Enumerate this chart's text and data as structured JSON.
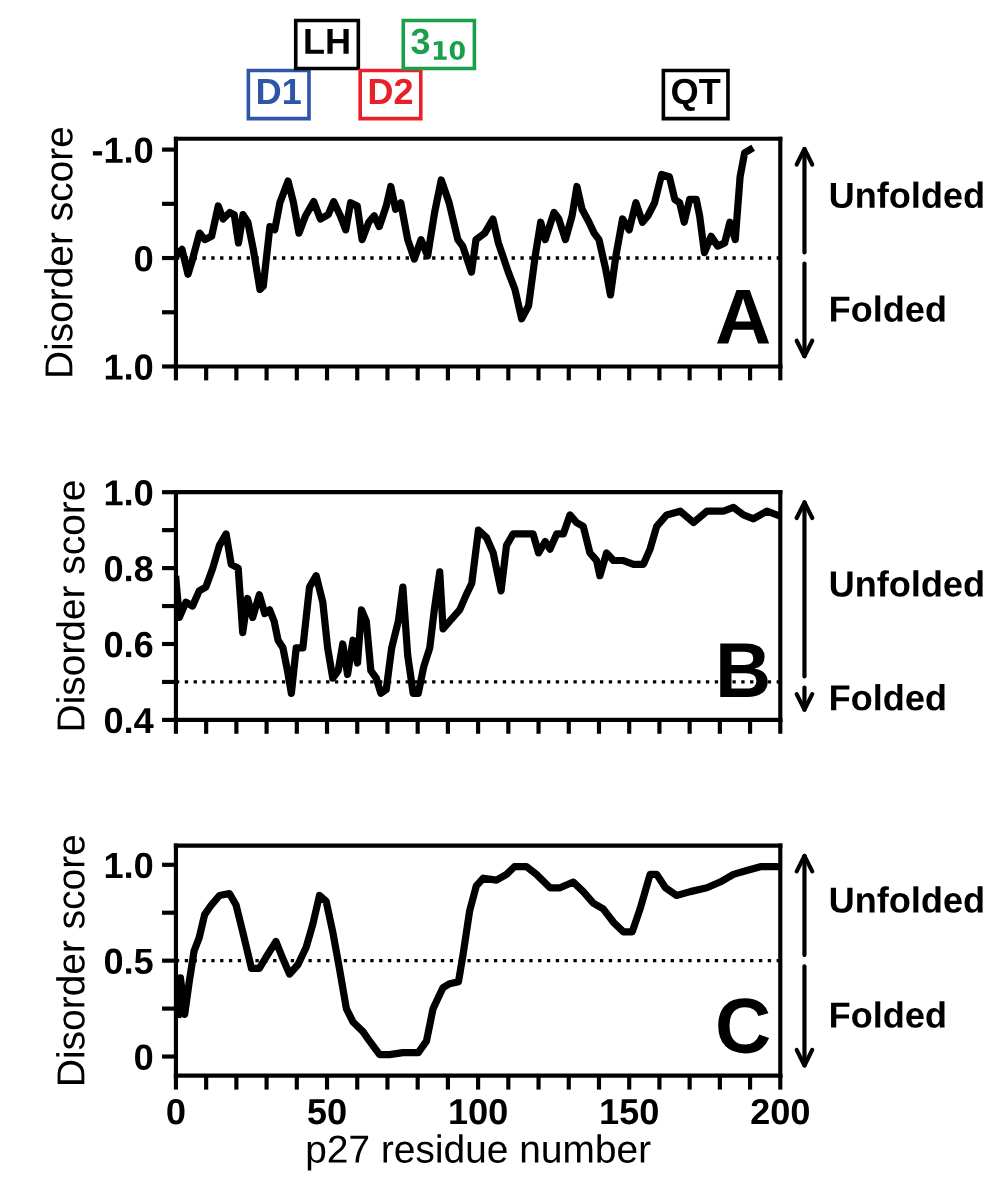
{
  "chart_data": [
    {
      "type": "line",
      "ylabel": "Disorder score",
      "xlim": [
        0,
        200
      ],
      "ylim": [
        1.0,
        -1.1
      ],
      "xticks": [
        0,
        {
          "value": 10,
          "label": null
        },
        {
          "value": 20,
          "label": null
        },
        {
          "value": 30,
          "label": null
        },
        {
          "value": 40,
          "label": null
        },
        50,
        {
          "value": 60,
          "label": null
        },
        {
          "value": 70,
          "label": null
        },
        {
          "value": 80,
          "label": null
        },
        {
          "value": 90,
          "label": null
        },
        100,
        {
          "value": 110,
          "label": null
        },
        {
          "value": 120,
          "label": null
        },
        {
          "value": 130,
          "label": null
        },
        {
          "value": 140,
          "label": null
        },
        150,
        {
          "value": 160,
          "label": null
        },
        {
          "value": 170,
          "label": null
        },
        {
          "value": 180,
          "label": null
        },
        {
          "value": 190,
          "label": null
        },
        200
      ],
      "yticks": [
        {
          "value": -1.0,
          "label": "-1.0"
        },
        {
          "value": -0.5,
          "label": null
        },
        0,
        {
          "value": 0.5,
          "label": null
        },
        {
          "value": 1.0,
          "label": "1.0"
        }
      ],
      "tick_labels": "y",
      "grid": false,
      "legend": false,
      "marker": "none",
      "line_style": "solid",
      "ref_lines": [
        {
          "axis": "y",
          "value": 0,
          "color": "#000000",
          "line_style": "dotted"
        }
      ],
      "annotations": [
        "Unfolded",
        "Folded",
        "A",
        "D1",
        "LH",
        "D2",
        "3$_{10}$",
        "QT"
      ],
      "series": [
        {
          "color": "#000000",
          "x": [
            1,
            2,
            4,
            5.5,
            7.8,
            9.5,
            11.8,
            14,
            15.6,
            17.8,
            19.3,
            20.7,
            22.2,
            23.8,
            25.6,
            27.8,
            28.9,
            31.1,
            32.7,
            34.4,
            37.1,
            38.9,
            40.7,
            42.9,
            45.6,
            47.8,
            50.4,
            52.2,
            54.4,
            56.2,
            57.8,
            60,
            61.6,
            63.8,
            65.6,
            67.3,
            69.6,
            71.1,
            72.7,
            74.4,
            76.7,
            78.9,
            81.1,
            83.3,
            85.6,
            87.8,
            90.4,
            93.3,
            94.9,
            97.8,
            99.3,
            102.2,
            104.9,
            106.7,
            110,
            112.2,
            114.4,
            116.7,
            118.9,
            120.7,
            122.2,
            125.1,
            126.7,
            128.9,
            131.1,
            132.7,
            134.4,
            136.7,
            138.4,
            140,
            142.2,
            143.8,
            145.6,
            147.8,
            150,
            152.2,
            154.4,
            156.2,
            158.4,
            160.7,
            163.3,
            165.1,
            166.7,
            168.2,
            170,
            172.2,
            173.3,
            174.9,
            177.1,
            179.3,
            181.6,
            183.3,
            185.1,
            186.7,
            188.2,
            190
          ],
          "values": [
            -0.05,
            -0.08,
            0.15,
            0.01,
            -0.23,
            -0.17,
            -0.2,
            -0.48,
            -0.36,
            -0.42,
            -0.4,
            -0.14,
            -0.4,
            -0.33,
            -0.08,
            0.29,
            0.26,
            -0.29,
            -0.26,
            -0.51,
            -0.71,
            -0.51,
            -0.23,
            -0.39,
            -0.52,
            -0.36,
            -0.4,
            -0.52,
            -0.39,
            -0.26,
            -0.51,
            -0.48,
            -0.17,
            -0.33,
            -0.39,
            -0.29,
            -0.48,
            -0.66,
            -0.45,
            -0.51,
            -0.17,
            0.01,
            -0.17,
            -0.02,
            -0.42,
            -0.72,
            -0.51,
            -0.17,
            -0.11,
            0.13,
            -0.17,
            -0.23,
            -0.36,
            -0.14,
            0.13,
            0.29,
            0.56,
            0.44,
            -0.02,
            -0.33,
            -0.17,
            -0.42,
            -0.36,
            -0.17,
            -0.39,
            -0.66,
            -0.45,
            -0.33,
            -0.23,
            -0.17,
            0.1,
            0.34,
            -0.02,
            -0.36,
            -0.26,
            -0.51,
            -0.33,
            -0.39,
            -0.51,
            -0.77,
            -0.75,
            -0.54,
            -0.51,
            -0.33,
            -0.54,
            -0.54,
            -0.39,
            -0.05,
            -0.2,
            -0.11,
            -0.14,
            -0.33,
            -0.17,
            -0.75,
            -0.97,
            -1.0
          ]
        }
      ]
    },
    {
      "type": "line",
      "ylabel": "Disorder score",
      "xlim": [
        0,
        200
      ],
      "ylim": [
        0.4,
        1.0
      ],
      "xticks": [
        0,
        {
          "value": 10,
          "label": null
        },
        {
          "value": 20,
          "label": null
        },
        {
          "value": 30,
          "label": null
        },
        {
          "value": 40,
          "label": null
        },
        50,
        {
          "value": 60,
          "label": null
        },
        {
          "value": 70,
          "label": null
        },
        {
          "value": 80,
          "label": null
        },
        {
          "value": 90,
          "label": null
        },
        100,
        {
          "value": 110,
          "label": null
        },
        {
          "value": 120,
          "label": null
        },
        {
          "value": 130,
          "label": null
        },
        {
          "value": 140,
          "label": null
        },
        150,
        {
          "value": 160,
          "label": null
        },
        {
          "value": 170,
          "label": null
        },
        {
          "value": 180,
          "label": null
        },
        {
          "value": 190,
          "label": null
        },
        200
      ],
      "yticks": [
        0.4,
        {
          "value": 0.5,
          "label": null
        },
        0.6,
        {
          "value": 0.7,
          "label": null
        },
        0.8,
        {
          "value": 0.9,
          "label": null
        },
        {
          "value": 1.0,
          "label": "1.0"
        }
      ],
      "tick_labels": "y",
      "grid": false,
      "legend": false,
      "marker": "none",
      "line_style": "solid",
      "ref_lines": [
        {
          "axis": "y",
          "value": 0.5,
          "color": "#000000",
          "line_style": "dotted"
        }
      ],
      "annotations": [
        "Unfolded",
        "Folded",
        "B"
      ],
      "series": [
        {
          "color": "#000000",
          "x": [
            0,
            1.1,
            3.3,
            5.5,
            7.7,
            9.9,
            12.2,
            14.4,
            16.6,
            18.3,
            20.6,
            22.1,
            23.7,
            25.4,
            27.6,
            29.4,
            31,
            32.5,
            33.8,
            35.4,
            36.9,
            38.2,
            39.8,
            42,
            44.2,
            46.4,
            48.6,
            50.2,
            51.9,
            53.7,
            55.2,
            56.8,
            58.6,
            60.1,
            61.4,
            63,
            64.5,
            66.3,
            67.8,
            69.6,
            71.4,
            73.6,
            75.1,
            76.7,
            78.5,
            80.2,
            82,
            84,
            85.5,
            87.3,
            88.4,
            90.6,
            93.9,
            96.1,
            97.9,
            100.1,
            102.8,
            105,
            107.6,
            109.4,
            111.6,
            116,
            118.2,
            120,
            122.2,
            123.8,
            126,
            128.2,
            130.4,
            132.6,
            134.8,
            137,
            139.2,
            140.3,
            142.5,
            144.8,
            148.1,
            151.4,
            154.7,
            156.9,
            159.1,
            162.4,
            166.9,
            171.3,
            175.7,
            179,
            181.2,
            184.5,
            187.8,
            191.1,
            195.6,
            198.9
          ],
          "values": [
            0.77,
            0.67,
            0.71,
            0.7,
            0.74,
            0.75,
            0.8,
            0.86,
            0.89,
            0.81,
            0.8,
            0.63,
            0.72,
            0.67,
            0.73,
            0.68,
            0.69,
            0.66,
            0.61,
            0.59,
            0.53,
            0.47,
            0.59,
            0.59,
            0.75,
            0.78,
            0.71,
            0.59,
            0.51,
            0.53,
            0.6,
            0.52,
            0.61,
            0.55,
            0.69,
            0.66,
            0.53,
            0.51,
            0.47,
            0.48,
            0.59,
            0.66,
            0.75,
            0.57,
            0.47,
            0.47,
            0.54,
            0.59,
            0.69,
            0.79,
            0.64,
            0.66,
            0.69,
            0.73,
            0.76,
            0.9,
            0.88,
            0.84,
            0.74,
            0.86,
            0.89,
            0.89,
            0.89,
            0.84,
            0.87,
            0.85,
            0.89,
            0.89,
            0.94,
            0.92,
            0.91,
            0.84,
            0.82,
            0.78,
            0.84,
            0.82,
            0.82,
            0.81,
            0.81,
            0.85,
            0.91,
            0.94,
            0.95,
            0.92,
            0.95,
            0.95,
            0.95,
            0.96,
            0.94,
            0.93,
            0.95,
            0.94
          ]
        }
      ]
    },
    {
      "type": "line",
      "ylabel": "Disorder score",
      "xlabel": "p27 residue number",
      "xlim": [
        0,
        200
      ],
      "ylim": [
        -0.1,
        1.1
      ],
      "xticks": [
        0,
        {
          "value": 10,
          "label": null
        },
        {
          "value": 20,
          "label": null
        },
        {
          "value": 30,
          "label": null
        },
        {
          "value": 40,
          "label": null
        },
        50,
        {
          "value": 60,
          "label": null
        },
        {
          "value": 70,
          "label": null
        },
        {
          "value": 80,
          "label": null
        },
        {
          "value": 90,
          "label": null
        },
        100,
        {
          "value": 110,
          "label": null
        },
        {
          "value": 120,
          "label": null
        },
        {
          "value": 130,
          "label": null
        },
        {
          "value": 140,
          "label": null
        },
        150,
        {
          "value": 160,
          "label": null
        },
        {
          "value": 170,
          "label": null
        },
        {
          "value": 180,
          "label": null
        },
        {
          "value": 190,
          "label": null
        },
        200
      ],
      "yticks": [
        0,
        {
          "value": 0.25,
          "label": null
        },
        0.5,
        {
          "value": 0.75,
          "label": null
        },
        {
          "value": 1.0,
          "label": "1.0"
        }
      ],
      "grid": false,
      "legend": false,
      "marker": "none",
      "line_style": "solid",
      "ref_lines": [
        {
          "axis": "y",
          "value": 0.5,
          "color": "#000000",
          "line_style": "dotted"
        }
      ],
      "annotations": [
        "Unfolded",
        "Folded",
        "C"
      ],
      "series": [
        {
          "color": "#000000",
          "x": [
            0.7,
            1.5,
            2.9,
            4.4,
            6,
            7.7,
            9.5,
            11.7,
            14.4,
            17.7,
            19.9,
            22.1,
            25,
            27.6,
            30.3,
            33.1,
            35.4,
            37.6,
            40.4,
            43.1,
            45.3,
            47.5,
            49.7,
            51.9,
            54.1,
            56.4,
            58.6,
            61.9,
            64.1,
            67.4,
            70.7,
            75.1,
            80.2,
            82.9,
            85.1,
            88.4,
            90.6,
            93.5,
            95,
            97.2,
            99.4,
            101.7,
            106.1,
            109.4,
            112,
            116,
            119.3,
            123.8,
            127.1,
            131.5,
            134.8,
            138.1,
            141.4,
            144.8,
            148.1,
            151,
            153.6,
            156.9,
            159.1,
            162,
            165.7,
            170.2,
            175.7,
            180.1,
            184.5,
            188.9,
            193.4,
            198.9
          ],
          "values": [
            0.22,
            0.41,
            0.22,
            0.39,
            0.55,
            0.62,
            0.74,
            0.79,
            0.84,
            0.85,
            0.79,
            0.65,
            0.46,
            0.46,
            0.53,
            0.6,
            0.51,
            0.43,
            0.48,
            0.57,
            0.69,
            0.84,
            0.81,
            0.65,
            0.46,
            0.25,
            0.18,
            0.13,
            0.08,
            0.01,
            0.01,
            0.02,
            0.02,
            0.08,
            0.25,
            0.36,
            0.38,
            0.39,
            0.53,
            0.76,
            0.89,
            0.93,
            0.92,
            0.95,
            0.99,
            0.99,
            0.95,
            0.88,
            0.88,
            0.91,
            0.86,
            0.8,
            0.77,
            0.7,
            0.65,
            0.65,
            0.77,
            0.95,
            0.95,
            0.88,
            0.84,
            0.86,
            0.88,
            0.91,
            0.95,
            0.97,
            0.99,
            0.99
          ]
        }
      ]
    }
  ]
}
